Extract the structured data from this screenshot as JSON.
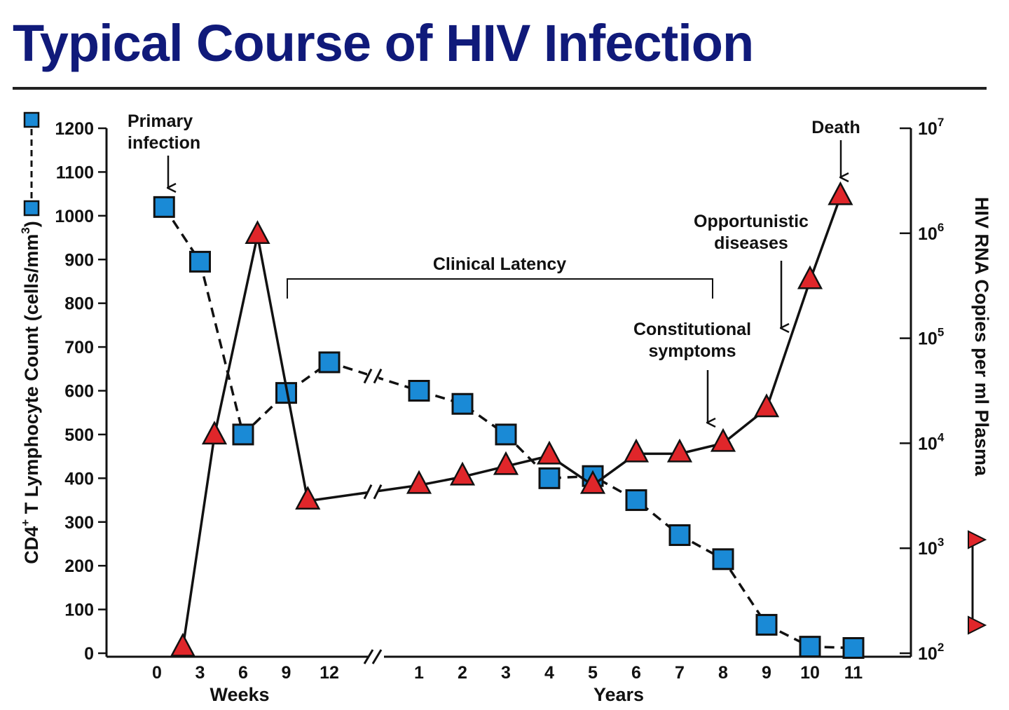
{
  "chart_data": {
    "type": "line",
    "title": "Typical Course of HIV Infection",
    "ylabel_left": "CD4",
    "ylabel_left_sup": "+",
    "ylabel_left_rest": " T Lymphocyte Count (cells/mm",
    "ylabel_left_sup2": "3",
    "ylabel_left_close": ")",
    "ylabel_right": "HIV RNA Copies per ml Plasma",
    "xlabel_weeks": "Weeks",
    "xlabel_years": "Years",
    "ylim_left": [
      0,
      1200
    ],
    "ylim_right_log10": [
      2,
      7
    ],
    "y_ticks_left": [
      "0",
      "100",
      "200",
      "300",
      "400",
      "500",
      "600",
      "700",
      "800",
      "900",
      "1000",
      "1100",
      "1200"
    ],
    "y_ticks_right": [
      {
        "base": "10",
        "exp": "2",
        "log": 2
      },
      {
        "base": "10",
        "exp": "3",
        "log": 3
      },
      {
        "base": "10",
        "exp": "4",
        "log": 4
      },
      {
        "base": "10",
        "exp": "5",
        "log": 5
      },
      {
        "base": "10",
        "exp": "6",
        "log": 6
      },
      {
        "base": "10",
        "exp": "7",
        "log": 7
      }
    ],
    "x_ticks_weeks": [
      "0",
      "3",
      "6",
      "9",
      "12"
    ],
    "x_ticks_years": [
      "1",
      "2",
      "3",
      "4",
      "5",
      "6",
      "7",
      "8",
      "9",
      "10",
      "11"
    ],
    "series": [
      {
        "name": "CD4+ T Lymphocyte Count",
        "marker": "square",
        "line": "dashed",
        "axis": "left",
        "color": "#1a8ad6",
        "points": [
          {
            "seg": "weeks",
            "x": 0.5,
            "y": 1020
          },
          {
            "seg": "weeks",
            "x": 3,
            "y": 895
          },
          {
            "seg": "weeks",
            "x": 6,
            "y": 500
          },
          {
            "seg": "weeks",
            "x": 9,
            "y": 595
          },
          {
            "seg": "weeks",
            "x": 12,
            "y": 665
          },
          {
            "seg": "years",
            "x": 1,
            "y": 600
          },
          {
            "seg": "years",
            "x": 2,
            "y": 570
          },
          {
            "seg": "years",
            "x": 3,
            "y": 500
          },
          {
            "seg": "years",
            "x": 4,
            "y": 400
          },
          {
            "seg": "years",
            "x": 5,
            "y": 405
          },
          {
            "seg": "years",
            "x": 6,
            "y": 350
          },
          {
            "seg": "years",
            "x": 7,
            "y": 270
          },
          {
            "seg": "years",
            "x": 8,
            "y": 215
          },
          {
            "seg": "years",
            "x": 9,
            "y": 65
          },
          {
            "seg": "years",
            "x": 10,
            "y": 15
          },
          {
            "seg": "years",
            "x": 11,
            "y": 12
          }
        ]
      },
      {
        "name": "HIV RNA Copies per ml Plasma",
        "marker": "triangle",
        "line": "solid",
        "axis": "right",
        "color": "#e0262a",
        "points": [
          {
            "seg": "weeks",
            "x": 1.8,
            "y": 2.05
          },
          {
            "seg": "weeks",
            "x": 4,
            "y": 4.07
          },
          {
            "seg": "weeks",
            "x": 7,
            "y": 5.98
          },
          {
            "seg": "weeks",
            "x": 10.5,
            "y": 3.45
          },
          {
            "seg": "years",
            "x": 1,
            "y": 3.6
          },
          {
            "seg": "years",
            "x": 2,
            "y": 3.68
          },
          {
            "seg": "years",
            "x": 3,
            "y": 3.78
          },
          {
            "seg": "years",
            "x": 4,
            "y": 3.88
          },
          {
            "seg": "years",
            "x": 5,
            "y": 3.6
          },
          {
            "seg": "years",
            "x": 6,
            "y": 3.9
          },
          {
            "seg": "years",
            "x": 7,
            "y": 3.9
          },
          {
            "seg": "years",
            "x": 8,
            "y": 4.0
          },
          {
            "seg": "years",
            "x": 9,
            "y": 4.33
          },
          {
            "seg": "years",
            "x": 10,
            "y": 5.55
          },
          {
            "seg": "years",
            "x": 10.7,
            "y": 6.35
          }
        ]
      }
    ],
    "annotations": {
      "primary_infection": [
        "Primary",
        "infection"
      ],
      "clinical_latency": "Clinical Latency",
      "constitutional_symptoms": [
        "Constitutional",
        "symptoms"
      ],
      "opportunistic_diseases": [
        "Opportunistic",
        "diseases"
      ],
      "death": "Death"
    }
  }
}
